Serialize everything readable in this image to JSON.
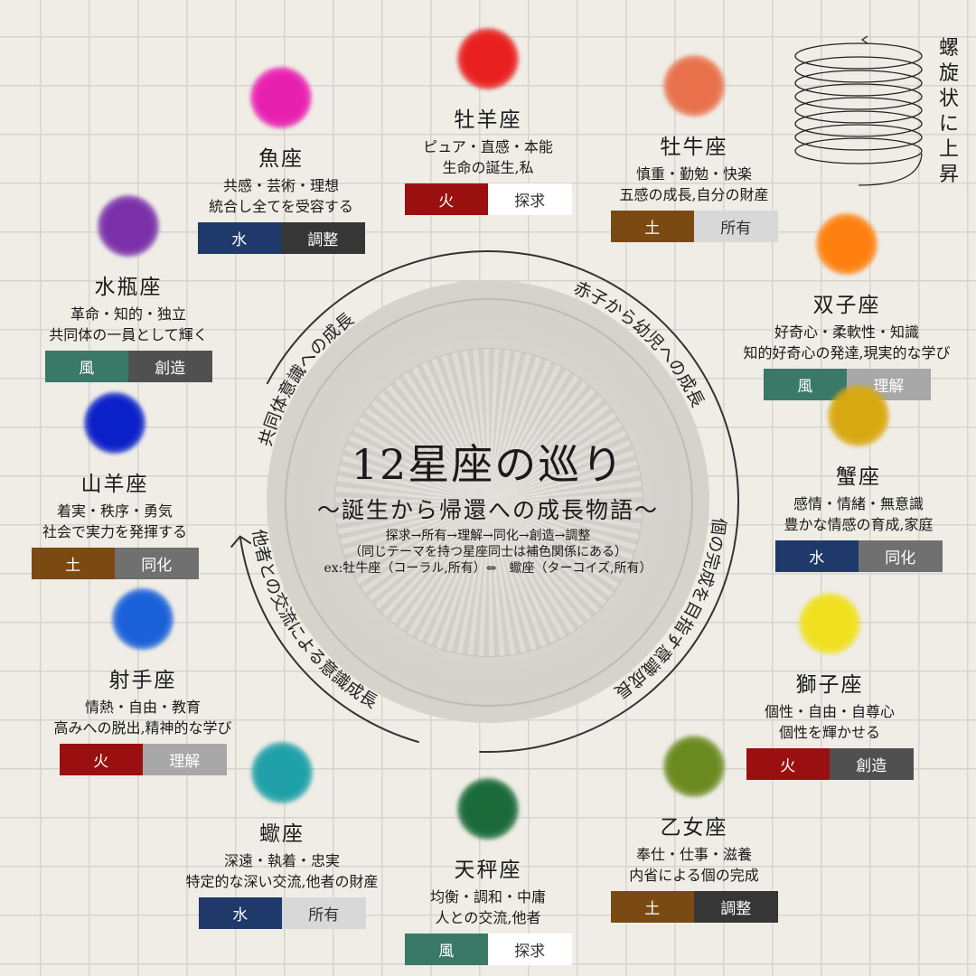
{
  "title": "12星座の巡り",
  "subtitle": "〜誕生から帰還への成長物語〜",
  "notes": [
    "探求→所有→理解→同化→創造→調整",
    "（同じテーマを持つ星座同士は補色関係にある）",
    "ex:牡牛座（コーラル,所有）⇔　蠍座（ターコイズ,所有）"
  ],
  "spiral_label": "螺旋状に上昇",
  "arc_labels": {
    "top_right": "赤子から幼児への成長",
    "right": "個の完成を目指す意識成長",
    "bottom_left": "他者との交流による意識成長",
    "top_left": "共同体意識への成長"
  },
  "element_colors": {
    "火": "#9a1010",
    "土": "#7a4a12",
    "風": "#3a7868",
    "水": "#1f3a6a"
  },
  "theme_colors": {
    "探求": "#ffffff",
    "所有": "#d8d8d8",
    "理解": "#a8a8a8",
    "同化": "#707070",
    "創造": "#505050",
    "調整": "#363636"
  },
  "signs": [
    {
      "name": "牡羊座",
      "color": "#e82020",
      "lines": [
        "ピュア・直感・本能",
        "生命の誕生,私"
      ],
      "element": "火",
      "theme": "探求"
    },
    {
      "name": "牡牛座",
      "color": "#e8704a",
      "lines": [
        "慎重・勤勉・快楽",
        "五感の成長,自分の財産"
      ],
      "element": "土",
      "theme": "所有"
    },
    {
      "name": "双子座",
      "color": "#ff8010",
      "lines": [
        "好奇心・柔軟性・知識",
        "知的好奇心の発達,現実的な学び"
      ],
      "element": "風",
      "theme": "理解"
    },
    {
      "name": "蟹座",
      "color": "#d8a810",
      "lines": [
        "感情・情緒・無意識",
        "豊かな情感の育成,家庭"
      ],
      "element": "水",
      "theme": "同化"
    },
    {
      "name": "獅子座",
      "color": "#f0e020",
      "lines": [
        "個性・自由・自尊心",
        "個性を輝かせる"
      ],
      "element": "火",
      "theme": "創造"
    },
    {
      "name": "乙女座",
      "color": "#6a8a20",
      "lines": [
        "奉仕・仕事・滋養",
        "内省による個の完成"
      ],
      "element": "土",
      "theme": "調整"
    },
    {
      "name": "天秤座",
      "color": "#1a6a3a",
      "lines": [
        "均衡・調和・中庸",
        "人との交流,他者"
      ],
      "element": "風",
      "theme": "探求"
    },
    {
      "name": "蠍座",
      "color": "#20a0a8",
      "lines": [
        "深遠・執着・忠実",
        "特定的な深い交流,他者の財産"
      ],
      "element": "水",
      "theme": "所有"
    },
    {
      "name": "射手座",
      "color": "#1a60d8",
      "lines": [
        "情熱・自由・教育",
        "高みへの脱出,精神的な学び"
      ],
      "element": "火",
      "theme": "理解"
    },
    {
      "name": "山羊座",
      "color": "#0a20c8",
      "lines": [
        "着実・秩序・勇気",
        "社会で実力を発揮する"
      ],
      "element": "土",
      "theme": "同化"
    },
    {
      "name": "水瓶座",
      "color": "#7a30a8",
      "lines": [
        "革命・知的・独立",
        "共同体の一員として輝く"
      ],
      "element": "風",
      "theme": "創造"
    },
    {
      "name": "魚座",
      "color": "#e820b0",
      "lines": [
        "共感・芸術・理想",
        "統合し全てを受容する"
      ],
      "element": "水",
      "theme": "調整"
    }
  ]
}
